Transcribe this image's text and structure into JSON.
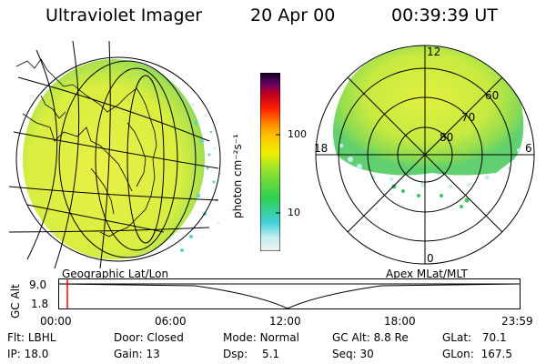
{
  "header": {
    "title": "Ultraviolet Imager",
    "date": "20 Apr 00",
    "time": "00:39:39 UT"
  },
  "colorbar": {
    "label": "photon cm⁻²s⁻¹",
    "ticks": [
      "100",
      "10"
    ],
    "scale": "log",
    "colors": [
      "#e8e8e8",
      "#c0eef0",
      "#40d0d8",
      "#30d050",
      "#90e030",
      "#d8f010",
      "#f4f000",
      "#ffc000",
      "#ff8000",
      "#ff3000",
      "#c00020",
      "#600060",
      "#100020"
    ]
  },
  "left_map": {
    "panel_label": "Geographic Lat/Lon",
    "fill_colors": [
      "#e8f040",
      "#b8e040",
      "#60d070"
    ]
  },
  "right_map": {
    "panel_label": "Apex MLat/MLT",
    "lat_labels": [
      "60",
      "70",
      "80"
    ],
    "mlt_labels": {
      "top": "12",
      "left": "18",
      "right": "6",
      "bottom": "0"
    }
  },
  "altitude_plot": {
    "ylabel": "GC Alt",
    "yticks": [
      "9.0",
      "1.8"
    ],
    "xticks": [
      "00:00",
      "06:00",
      "12:00",
      "18:00",
      "23:59"
    ],
    "cursor_time": "00:39",
    "cursor_color": "#ff0000"
  },
  "status": {
    "row1": [
      {
        "key": "Flt:",
        "value": "LBHL"
      },
      {
        "key": "Door:",
        "value": "Closed"
      },
      {
        "key": "Mode:",
        "value": "Normal"
      },
      {
        "key": "GC Alt:",
        "value": "8.8 Re"
      },
      {
        "key": "GLat:",
        "value": "70.1"
      }
    ],
    "row2": [
      {
        "key": "IP:",
        "value": "18.0"
      },
      {
        "key": "Gain:",
        "value": "13"
      },
      {
        "key": "Dsp:",
        "value": "5.1"
      },
      {
        "key": "Seq:",
        "value": "30"
      },
      {
        "key": "GLon:",
        "value": "167.5"
      }
    ]
  }
}
